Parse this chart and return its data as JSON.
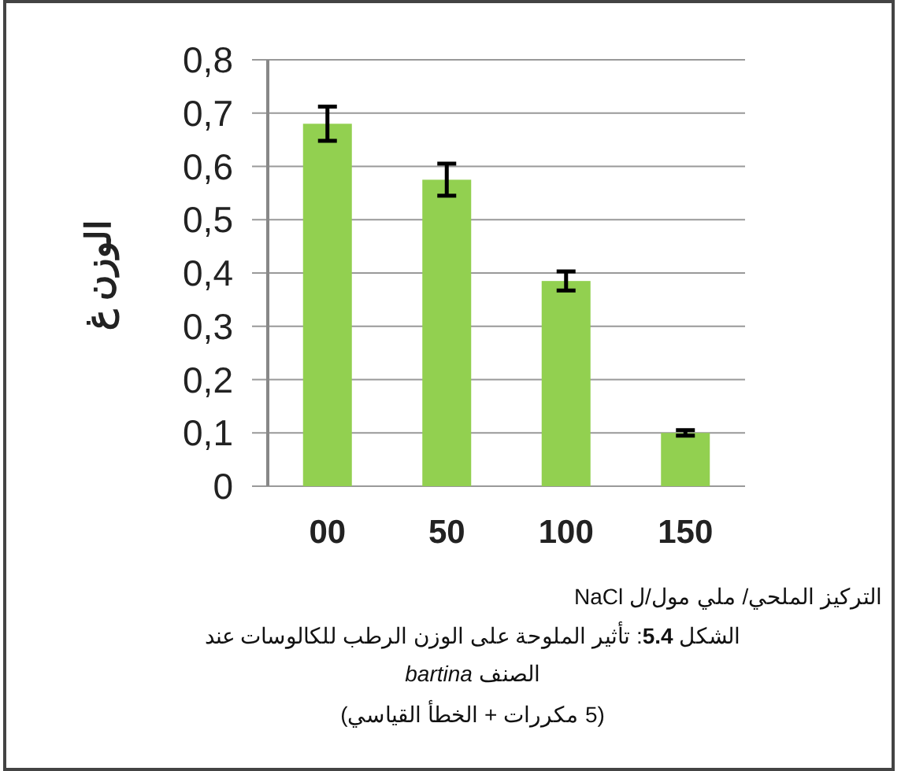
{
  "chart_data": {
    "type": "bar",
    "categories": [
      "00",
      "50",
      "100",
      "150"
    ],
    "values": [
      0.68,
      0.575,
      0.385,
      0.1
    ],
    "errors": [
      0.032,
      0.03,
      0.018,
      0.005
    ],
    "color": "#92d050",
    "ylim": [
      0,
      0.8
    ],
    "yticks": [
      {
        "value": 0,
        "label": "0"
      },
      {
        "value": 0.1,
        "label": "0,1"
      },
      {
        "value": 0.2,
        "label": "0,2"
      },
      {
        "value": 0.3,
        "label": "0,3"
      },
      {
        "value": 0.4,
        "label": "0,4"
      },
      {
        "value": 0.5,
        "label": "0,5"
      },
      {
        "value": 0.6,
        "label": "0,6"
      },
      {
        "value": 0.7,
        "label": "0,7"
      },
      {
        "value": 0.8,
        "label": "0,8"
      }
    ],
    "grid": "y",
    "ylabel": "الوزن غ",
    "xlabel": "التركيز الملحي/ ملي مول/ل NaCl",
    "annotations": [
      "الشكل **5.4**:  تأثير الملوحة على الوزن الرطب للكالوسات عند الصنف *bartina*",
      "(5 مكررات + الخطأ القياسي)"
    ]
  }
}
